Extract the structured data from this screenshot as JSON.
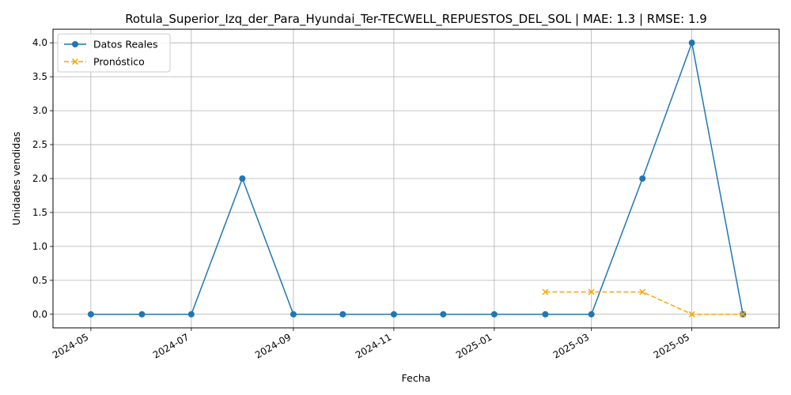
{
  "chart_data": {
    "type": "line",
    "title": "Rotula_Superior_Izq_der_Para_Hyundai_Ter-TECWELL_REPUESTOS_DEL_SOL | MAE: 1.3 | RMSE: 1.9",
    "xlabel": "Fecha",
    "ylabel": "Unidades vendidas",
    "ylim": [
      -0.2,
      4.2
    ],
    "xlim": [
      "2024-04-08",
      "2025-06-23"
    ],
    "yticks": [
      0.0,
      0.5,
      1.0,
      1.5,
      2.0,
      2.5,
      3.0,
      3.5,
      4.0
    ],
    "ytick_labels": [
      "0.0",
      "0.5",
      "1.0",
      "1.5",
      "2.0",
      "2.5",
      "3.0",
      "3.5",
      "4.0"
    ],
    "xticks": [
      "2024-05-01",
      "2024-07-01",
      "2024-09-01",
      "2024-11-01",
      "2025-01-01",
      "2025-03-01",
      "2025-05-01"
    ],
    "xtick_labels": [
      "2024-05",
      "2024-07",
      "2024-09",
      "2024-11",
      "2025-01",
      "2025-03",
      "2025-05"
    ],
    "grid": true,
    "legend_position": "top-left",
    "series": [
      {
        "name": "Datos Reales",
        "color": "#1f77b4",
        "marker": "circle",
        "linestyle": "solid",
        "x": [
          "2024-05-01",
          "2024-06-01",
          "2024-07-01",
          "2024-08-01",
          "2024-09-01",
          "2024-10-01",
          "2024-11-01",
          "2024-12-01",
          "2025-01-01",
          "2025-02-01",
          "2025-03-01",
          "2025-04-01",
          "2025-05-01",
          "2025-06-01"
        ],
        "values": [
          0,
          0,
          0,
          2,
          0,
          0,
          0,
          0,
          0,
          0,
          0,
          2,
          4,
          0
        ]
      },
      {
        "name": "Pronóstico",
        "color": "#ffa500",
        "marker": "x",
        "linestyle": "dashed",
        "x": [
          "2025-02-01",
          "2025-03-01",
          "2025-04-01",
          "2025-05-01",
          "2025-06-01"
        ],
        "values": [
          0.33,
          0.33,
          0.33,
          0,
          0
        ]
      }
    ]
  }
}
